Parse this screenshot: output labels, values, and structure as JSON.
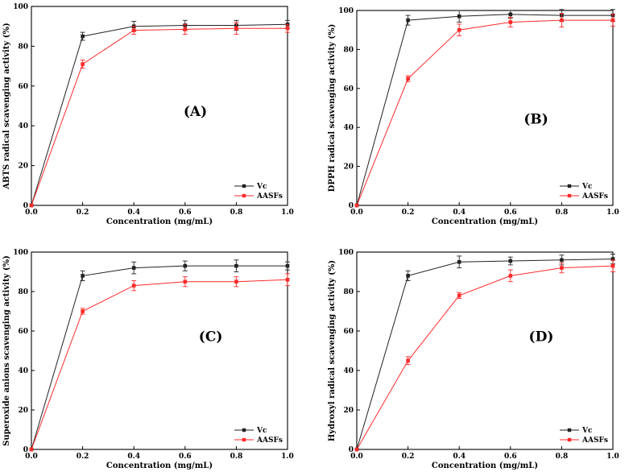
{
  "chart_data": [
    {
      "type": "line",
      "panel_label": "(A)",
      "xlabel": "Concentration (mg/mL)",
      "ylabel": "ABTS radical scavenging activity (%)",
      "xlim": [
        0,
        1.0
      ],
      "ylim": [
        0,
        100
      ],
      "xticks": [
        "0.0",
        "0.2",
        "0.4",
        "0.6",
        "0.8",
        "1.0"
      ],
      "yticks": [
        "0",
        "20",
        "40",
        "60",
        "80",
        "100"
      ],
      "legend_position": "bottom-right",
      "grid": false,
      "x": [
        0,
        0.2,
        0.4,
        0.6,
        0.8,
        1.0
      ],
      "series": [
        {
          "name": "Vc",
          "color": "#222222",
          "values": [
            0,
            85,
            90,
            90.5,
            90.5,
            91
          ],
          "errors": [
            0,
            2,
            2.5,
            2.5,
            2.5,
            2
          ]
        },
        {
          "name": "AASFs",
          "color": "#ff2a2a",
          "values": [
            0,
            71,
            88,
            88.5,
            89,
            89
          ],
          "errors": [
            0,
            2,
            2,
            2.5,
            3,
            2
          ]
        }
      ]
    },
    {
      "type": "line",
      "panel_label": "(B)",
      "xlabel": "Concentration (mg/mL)",
      "ylabel": "DPPH radical scavenging activity (%)",
      "xlim": [
        0,
        1.0
      ],
      "ylim": [
        0,
        100
      ],
      "xticks": [
        "0.0",
        "0.2",
        "0.4",
        "0.6",
        "0.8",
        "1.0"
      ],
      "yticks": [
        "0",
        "20",
        "40",
        "60",
        "80",
        "100"
      ],
      "legend_position": "bottom-right",
      "grid": false,
      "x": [
        0,
        0.2,
        0.4,
        0.6,
        0.8,
        1.0
      ],
      "series": [
        {
          "name": "Vc",
          "color": "#222222",
          "values": [
            0,
            95,
            97,
            98,
            97.5,
            97.5
          ],
          "errors": [
            0,
            2.5,
            3,
            2,
            3,
            3
          ]
        },
        {
          "name": "AASFs",
          "color": "#ff2a2a",
          "values": [
            0,
            65,
            90,
            94,
            95,
            95
          ],
          "errors": [
            0,
            1.5,
            3,
            2.5,
            3.5,
            3
          ]
        }
      ]
    },
    {
      "type": "line",
      "panel_label": "(C)",
      "xlabel": "Concentration (mg/mL)",
      "ylabel": "Superoxide anions scavenging activity (%)",
      "xlim": [
        0,
        1.0
      ],
      "ylim": [
        0,
        100
      ],
      "xticks": [
        "0.0",
        "0.2",
        "0.4",
        "0.6",
        "0.8",
        "1.0"
      ],
      "yticks": [
        "0",
        "20",
        "40",
        "60",
        "80",
        "100"
      ],
      "legend_position": "bottom-right",
      "grid": false,
      "x": [
        0,
        0.2,
        0.4,
        0.6,
        0.8,
        1.0
      ],
      "series": [
        {
          "name": "Vc",
          "color": "#222222",
          "values": [
            0,
            88,
            92,
            93,
            93,
            93
          ],
          "errors": [
            0,
            2.5,
            3,
            2.5,
            3,
            2
          ]
        },
        {
          "name": "AASFs",
          "color": "#ff2a2a",
          "values": [
            0,
            70,
            83,
            85,
            85,
            86
          ],
          "errors": [
            0,
            1.5,
            2.5,
            2.5,
            2.5,
            3
          ]
        }
      ]
    },
    {
      "type": "line",
      "panel_label": "(D)",
      "xlabel": "Concentration (mg/mL)",
      "ylabel": "Hydroxyl radical scavenging activity (%)",
      "xlim": [
        0,
        1.0
      ],
      "ylim": [
        0,
        100
      ],
      "xticks": [
        "0.0",
        "0.2",
        "0.4",
        "0.6",
        "0.8",
        "1.0"
      ],
      "yticks": [
        "0",
        "20",
        "40",
        "60",
        "80",
        "100"
      ],
      "legend_position": "bottom-right",
      "grid": false,
      "x": [
        0,
        0.2,
        0.4,
        0.6,
        0.8,
        1.0
      ],
      "series": [
        {
          "name": "Vc",
          "color": "#222222",
          "values": [
            0,
            88,
            95,
            95.5,
            96,
            96.5
          ],
          "errors": [
            0,
            2.5,
            3,
            2,
            2.5,
            2.5
          ]
        },
        {
          "name": "AASFs",
          "color": "#ff2a2a",
          "values": [
            0,
            45,
            78,
            88,
            92,
            93
          ],
          "errors": [
            0,
            2,
            1.5,
            3,
            2.5,
            3
          ]
        }
      ]
    }
  ]
}
